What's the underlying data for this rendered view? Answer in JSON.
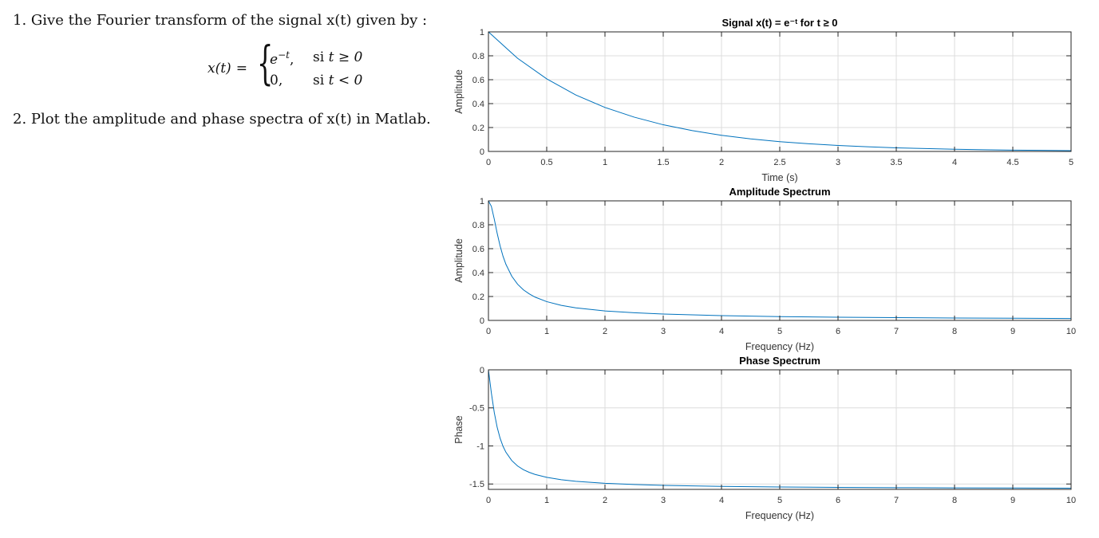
{
  "document": {
    "q1_text": "1. Give the Fourier transform of the signal x(t) given by :",
    "q2_text": "2. Plot the amplitude and phase spectra of x(t) in Matlab.",
    "equation": {
      "lhs": "x(t)",
      "eq_sign": "=",
      "case1_expr": "e",
      "case1_exp": "−t",
      "case1_cond_prefix": "si",
      "case1_cond": "t ≥ 0",
      "case2_expr": "0,",
      "case2_cond_prefix": "si",
      "case2_cond": "t < 0"
    }
  },
  "colors": {
    "line": "#0072BD",
    "grid": "#dcdcdc",
    "axis": "#262626"
  },
  "chart_data": [
    {
      "type": "line",
      "title": "Signal x(t) = e⁻ᵗ for t ≥ 0",
      "xlabel": "Time (s)",
      "ylabel": "Amplitude",
      "xlim": [
        0,
        5
      ],
      "ylim": [
        0,
        1
      ],
      "xticks": [
        0,
        0.5,
        1,
        1.5,
        2,
        2.5,
        3,
        3.5,
        4,
        4.5,
        5
      ],
      "yticks": [
        0,
        0.2,
        0.4,
        0.6,
        0.8,
        1
      ],
      "xtick_labels": [
        "0",
        "0.5",
        "1",
        "1.5",
        "2",
        "2.5",
        "3",
        "3.5",
        "4",
        "4.5",
        "5"
      ],
      "ytick_labels": [
        "0",
        "0.2",
        "0.4",
        "0.6",
        "0.8",
        "1"
      ],
      "grid": true,
      "series": [
        {
          "x": [
            0,
            0.25,
            0.5,
            0.75,
            1,
            1.25,
            1.5,
            1.75,
            2,
            2.25,
            2.5,
            2.75,
            3,
            3.25,
            3.5,
            3.75,
            4,
            4.25,
            4.5,
            4.75,
            5
          ],
          "y": [
            1,
            0.779,
            0.607,
            0.472,
            0.368,
            0.287,
            0.223,
            0.174,
            0.135,
            0.105,
            0.082,
            0.064,
            0.05,
            0.039,
            0.03,
            0.024,
            0.018,
            0.014,
            0.011,
            0.009,
            0.007
          ]
        }
      ]
    },
    {
      "type": "line",
      "title": "Amplitude Spectrum",
      "xlabel": "Frequency (Hz)",
      "ylabel": "Amplitude",
      "xlim": [
        0,
        10
      ],
      "ylim": [
        0,
        1
      ],
      "xticks": [
        0,
        1,
        2,
        3,
        4,
        5,
        6,
        7,
        8,
        9,
        10
      ],
      "yticks": [
        0,
        0.2,
        0.4,
        0.6,
        0.8,
        1
      ],
      "xtick_labels": [
        "0",
        "1",
        "2",
        "3",
        "4",
        "5",
        "6",
        "7",
        "8",
        "9",
        "10"
      ],
      "ytick_labels": [
        "0",
        "0.2",
        "0.4",
        "0.6",
        "0.8",
        "1"
      ],
      "grid": true,
      "series": [
        {
          "x": [
            0,
            0.05,
            0.1,
            0.15,
            0.2,
            0.25,
            0.3,
            0.4,
            0.5,
            0.6,
            0.7,
            0.8,
            1,
            1.25,
            1.5,
            2,
            2.5,
            3,
            4,
            5,
            6,
            7,
            8,
            9,
            10
          ],
          "y": [
            1,
            0.954,
            0.847,
            0.728,
            0.623,
            0.537,
            0.469,
            0.37,
            0.303,
            0.256,
            0.222,
            0.195,
            0.157,
            0.126,
            0.105,
            0.079,
            0.064,
            0.053,
            0.04,
            0.032,
            0.027,
            0.023,
            0.02,
            0.018,
            0.016
          ]
        }
      ]
    },
    {
      "type": "line",
      "title": "Phase Spectrum",
      "xlabel": "Frequency (Hz)",
      "ylabel": "Phase",
      "xlim": [
        0,
        10
      ],
      "ylim": [
        -1.5708,
        0
      ],
      "xticks": [
        0,
        1,
        2,
        3,
        4,
        5,
        6,
        7,
        8,
        9,
        10
      ],
      "yticks": [
        -1.5,
        -1,
        -0.5,
        0
      ],
      "xtick_labels": [
        "0",
        "1",
        "2",
        "3",
        "4",
        "5",
        "6",
        "7",
        "8",
        "9",
        "10"
      ],
      "ytick_labels": [
        "-1.5",
        "-1",
        "-0.5",
        "0"
      ],
      "grid": true,
      "series": [
        {
          "x": [
            0,
            0.05,
            0.1,
            0.15,
            0.2,
            0.25,
            0.3,
            0.4,
            0.5,
            0.6,
            0.7,
            0.8,
            1,
            1.25,
            1.5,
            2,
            2.5,
            3,
            4,
            5,
            6,
            7,
            8,
            9,
            10
          ],
          "y": [
            0,
            -0.304,
            -0.561,
            -0.756,
            -0.899,
            -1.004,
            -1.083,
            -1.192,
            -1.263,
            -1.312,
            -1.347,
            -1.374,
            -1.412,
            -1.444,
            -1.465,
            -1.491,
            -1.507,
            -1.518,
            -1.531,
            -1.539,
            -1.544,
            -1.548,
            -1.551,
            -1.553,
            -1.555
          ]
        }
      ]
    }
  ]
}
